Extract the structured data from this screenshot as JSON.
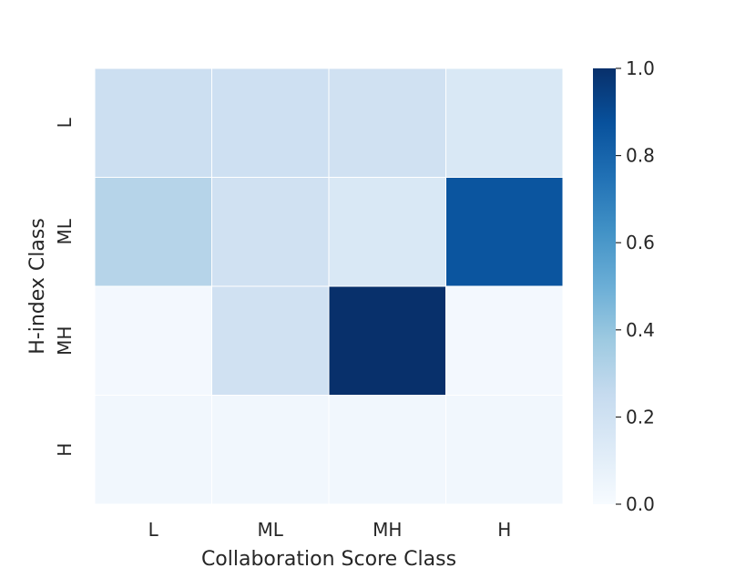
{
  "chart_data": {
    "type": "heatmap",
    "x_categories": [
      "L",
      "ML",
      "MH",
      "H"
    ],
    "y_categories": [
      "L",
      "ML",
      "MH",
      "H"
    ],
    "xlabel": "Collaboration Score Class",
    "ylabel": "H-index Class",
    "values": [
      [
        0.22,
        0.21,
        0.2,
        0.15
      ],
      [
        0.3,
        0.2,
        0.15,
        0.86
      ],
      [
        0.02,
        0.2,
        1.0,
        0.02
      ],
      [
        0.03,
        0.03,
        0.03,
        0.03
      ]
    ],
    "colorbar": {
      "min": 0.0,
      "max": 1.0,
      "ticks": [
        "0.0",
        "0.2",
        "0.4",
        "0.6",
        "0.8",
        "1.0"
      ],
      "colormap": "Blues"
    },
    "grid": false
  }
}
